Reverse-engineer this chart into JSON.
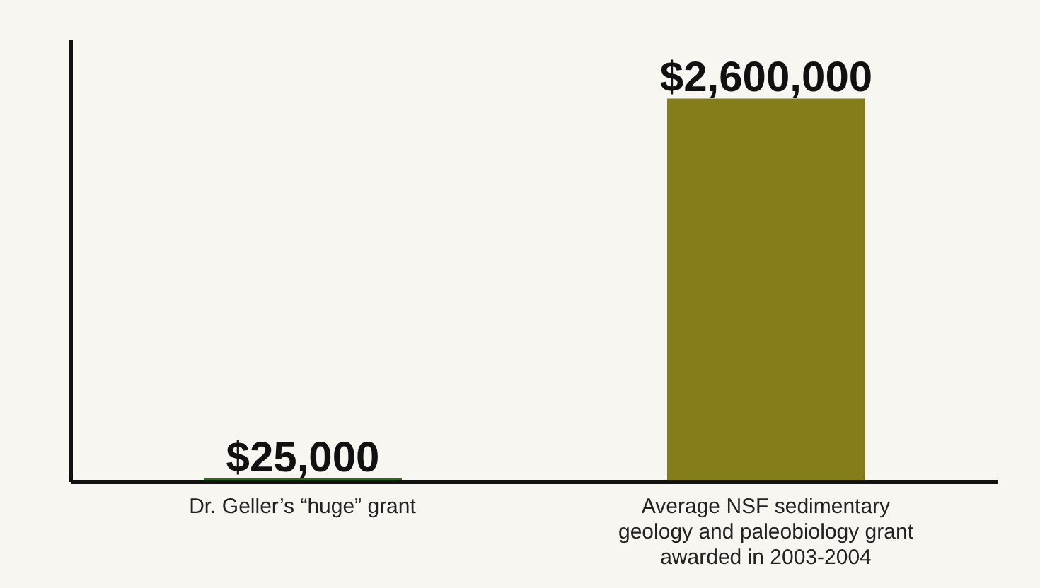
{
  "chart_data": {
    "type": "bar",
    "categories": [
      "Dr. Geller’s “huge” grant",
      "Average NSF sedimentary geology and paleobiology grant awarded in 2003-2004"
    ],
    "values": [
      25000,
      2600000
    ],
    "value_labels": [
      "$25,000",
      "$2,600,000"
    ],
    "colors": [
      "#2e6b1e",
      "#857d1a"
    ],
    "ylim": [
      0,
      3000000
    ]
  }
}
